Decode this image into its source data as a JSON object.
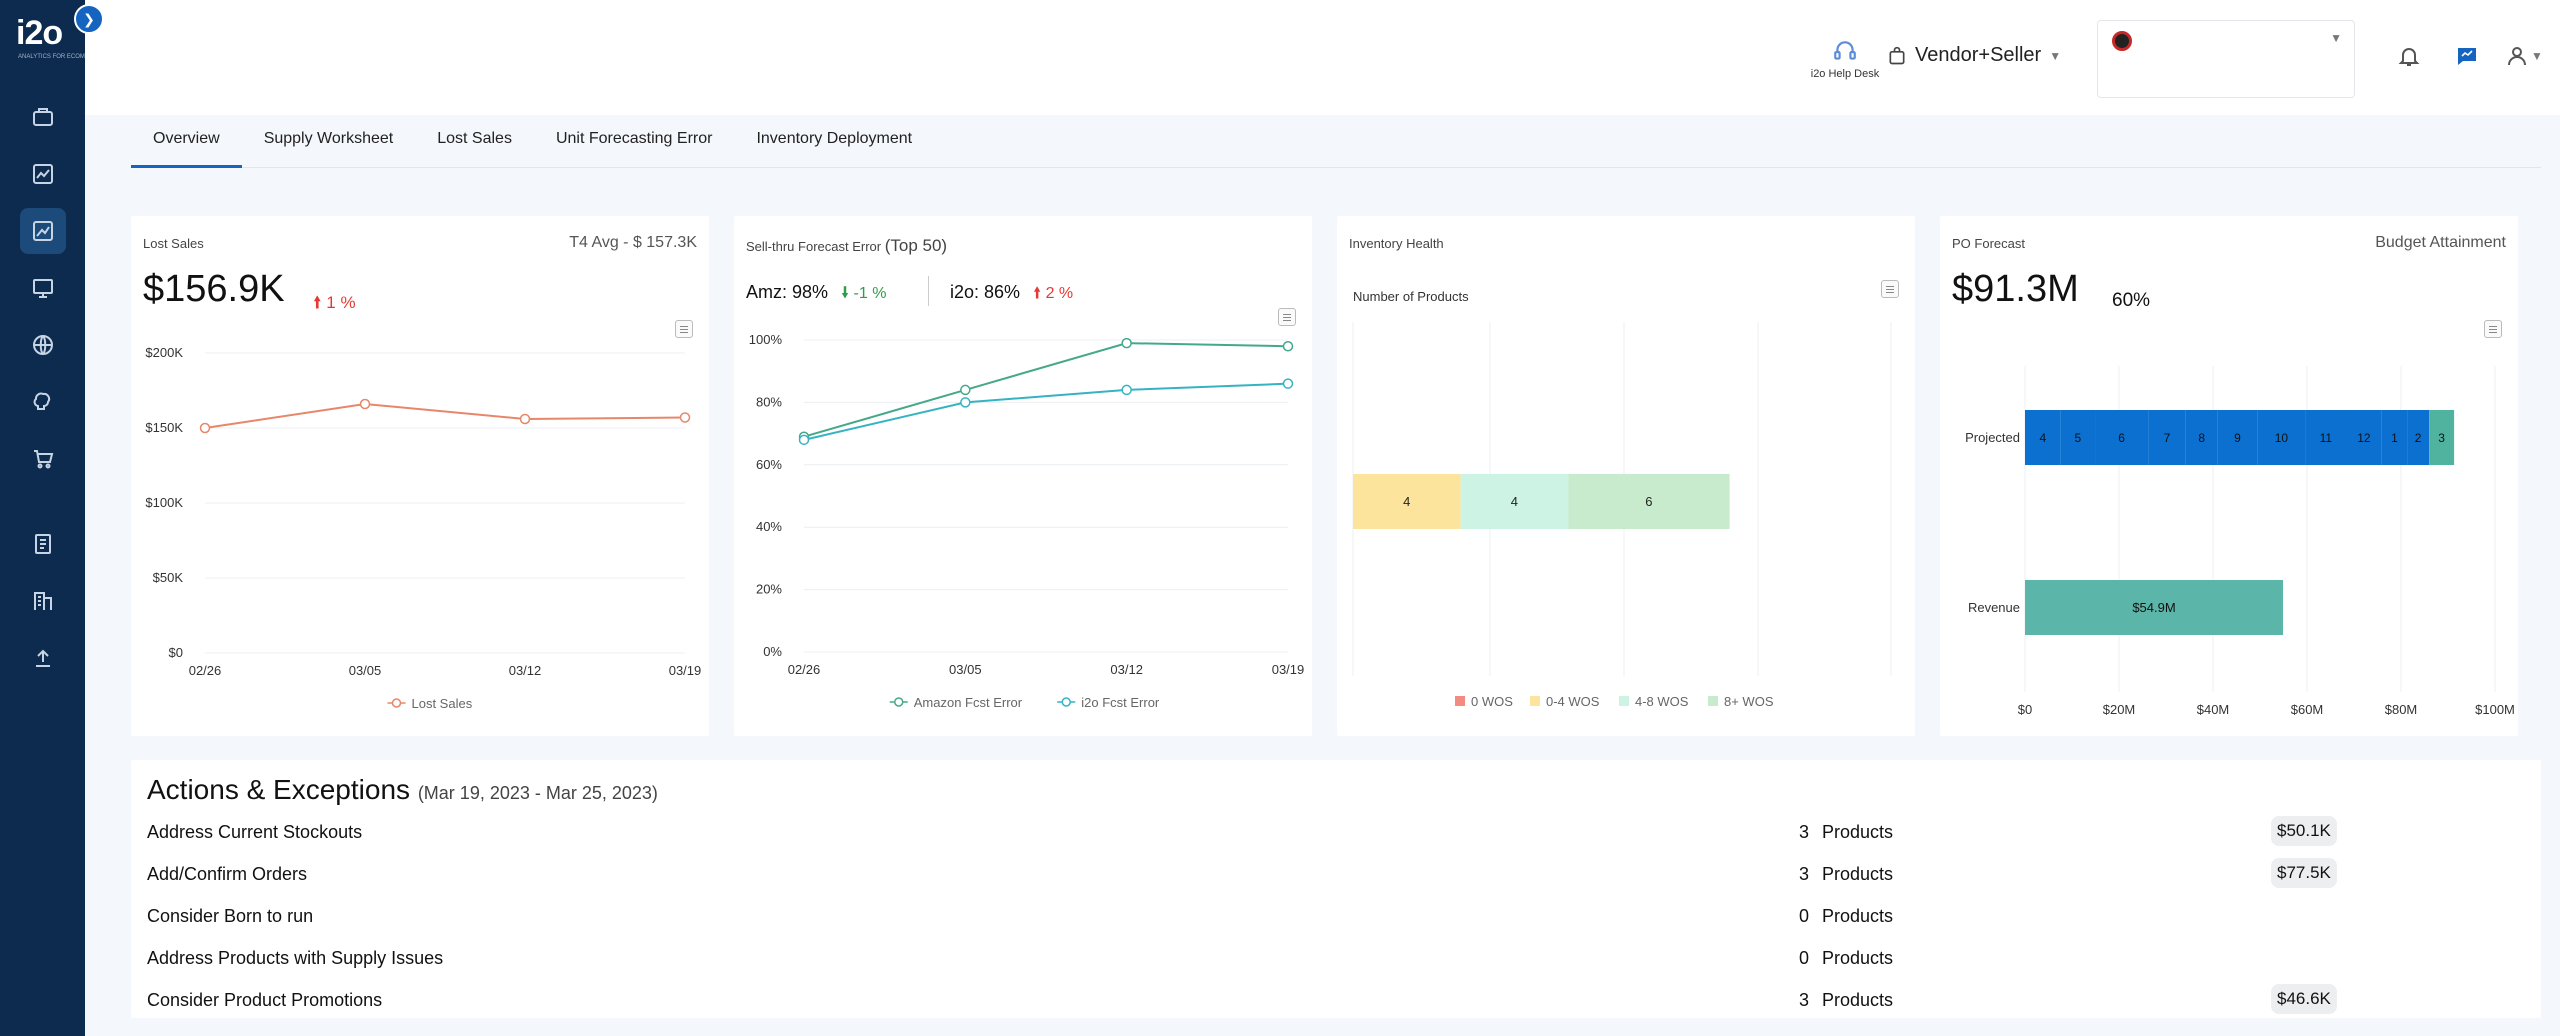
{
  "brand": {
    "logo": "i2o",
    "tagline": "ANALYTICS FOR ECOMMERCE"
  },
  "sidebar": {
    "expand_icon": "chevron-right-icon",
    "items": [
      {
        "icon": "briefcase-icon",
        "active": false
      },
      {
        "icon": "chart-area-icon",
        "active": false
      },
      {
        "icon": "trend-chart-icon",
        "active": true
      },
      {
        "icon": "monitor-icon",
        "active": false
      },
      {
        "icon": "globe-icon",
        "active": false
      },
      {
        "icon": "brain-icon",
        "active": false
      },
      {
        "icon": "cart-icon",
        "active": false
      },
      {
        "icon": "book-icon",
        "active": false
      },
      {
        "icon": "building-icon",
        "active": false
      },
      {
        "icon": "upload-icon",
        "active": false
      }
    ]
  },
  "header": {
    "helpdesk_label": "i2o Help Desk",
    "vendor_label": "Vendor+Seller",
    "icons": [
      "headset-icon",
      "bell-icon",
      "chat-icon",
      "user-icon"
    ]
  },
  "tabs": [
    {
      "label": "Overview",
      "active": true
    },
    {
      "label": "Supply Worksheet",
      "active": false
    },
    {
      "label": "Lost Sales",
      "active": false
    },
    {
      "label": "Unit Forecasting Error",
      "active": false
    },
    {
      "label": "Inventory Deployment",
      "active": false
    }
  ],
  "lost_sales_card": {
    "title": "Lost Sales",
    "avg": "T4 Avg - $ 157.3K",
    "kpi": "$156.9K",
    "change": "1 %"
  },
  "forecast_card": {
    "title": "Sell-thru Forecast Error",
    "subtitle": "(Top 50)",
    "amz": "Amz: 98%",
    "amz_change": "-1 %",
    "i2o": "i2o: 86%",
    "i2o_change": "2 %"
  },
  "inventory_card": {
    "title": "Inventory Health"
  },
  "po_card": {
    "title": "PO Forecast",
    "right": "Budget Attainment",
    "kpi": "$91.3M",
    "pct": "60%"
  },
  "chart_data": [
    {
      "type": "line",
      "x": [
        "02/26",
        "03/05",
        "03/12",
        "03/19"
      ],
      "y_ticks": [
        "$200K",
        "$150K",
        "$100K",
        "$50K",
        "$0"
      ],
      "ylim": [
        0,
        200000
      ],
      "series": [
        {
          "name": "Lost Sales",
          "values": [
            150000,
            166000,
            156000,
            157000
          ],
          "color": "#e8866a"
        }
      ]
    },
    {
      "type": "line",
      "x": [
        "02/26",
        "03/05",
        "03/12",
        "03/19"
      ],
      "y_ticks": [
        "100%",
        "80%",
        "60%",
        "40%",
        "20%",
        "0%"
      ],
      "ylim": [
        0,
        100
      ],
      "series": [
        {
          "name": "Amazon Fcst Error",
          "values": [
            69,
            84,
            99,
            98
          ],
          "color": "#45a88a"
        },
        {
          "name": "i2o Fcst Error",
          "values": [
            68,
            80,
            84,
            86
          ],
          "color": "#36b3c2"
        }
      ]
    },
    {
      "type": "bar",
      "orientation": "horizontal-stacked",
      "ylabel": "Number of Products",
      "segments": [
        {
          "name": "0 WOS",
          "value": 0,
          "color": "#f28b82"
        },
        {
          "name": "0-4 WOS",
          "value": 4,
          "color": "#fde49c"
        },
        {
          "name": "4-8 WOS",
          "value": 4,
          "color": "#cdf3e4"
        },
        {
          "name": "8+ WOS",
          "value": 6,
          "color": "#c8ebce"
        }
      ],
      "xlim": [
        0,
        20
      ]
    },
    {
      "type": "bar",
      "orientation": "horizontal-stacked",
      "categories": [
        "Projected",
        "Revenue"
      ],
      "x_ticks": [
        "$0",
        "$20M",
        "$40M",
        "$60M",
        "$80M",
        "$100M"
      ],
      "xlim": [
        0,
        100
      ],
      "projected_segments": [
        {
          "label": "4",
          "value": 7.6
        },
        {
          "label": "5",
          "value": 7.3
        },
        {
          "label": "6",
          "value": 11.3
        },
        {
          "label": "7",
          "value": 8
        },
        {
          "label": "8",
          "value": 6.8
        },
        {
          "label": "9",
          "value": 8.4
        },
        {
          "label": "10",
          "value": 10.3
        },
        {
          "label": "11",
          "value": 8.6
        },
        {
          "label": "12",
          "value": 7.6
        },
        {
          "label": "1",
          "value": 5.4
        },
        {
          "label": "2",
          "value": 4.7
        },
        {
          "label": "3",
          "value": 5.3
        }
      ],
      "projected_color": "#0b70cf",
      "last_color": "#4fb3a0",
      "revenue": {
        "label": "$54.9M",
        "value": 54.9,
        "color": "#5bb5a8"
      }
    }
  ],
  "actions": {
    "title": "Actions & Exceptions",
    "range": "(Mar 19, 2023  -  Mar 25, 2023)",
    "unit": "Products",
    "rows": [
      {
        "label": "Address Current Stockouts",
        "count": "3",
        "value": "$50.1K"
      },
      {
        "label": "Add/Confirm Orders",
        "count": "3",
        "value": "$77.5K"
      },
      {
        "label": "Consider Born to run",
        "count": "0",
        "value": ""
      },
      {
        "label": "Address Products with Supply Issues",
        "count": "0",
        "value": ""
      },
      {
        "label": "Consider Product Promotions",
        "count": "3",
        "value": "$46.6K"
      }
    ]
  }
}
